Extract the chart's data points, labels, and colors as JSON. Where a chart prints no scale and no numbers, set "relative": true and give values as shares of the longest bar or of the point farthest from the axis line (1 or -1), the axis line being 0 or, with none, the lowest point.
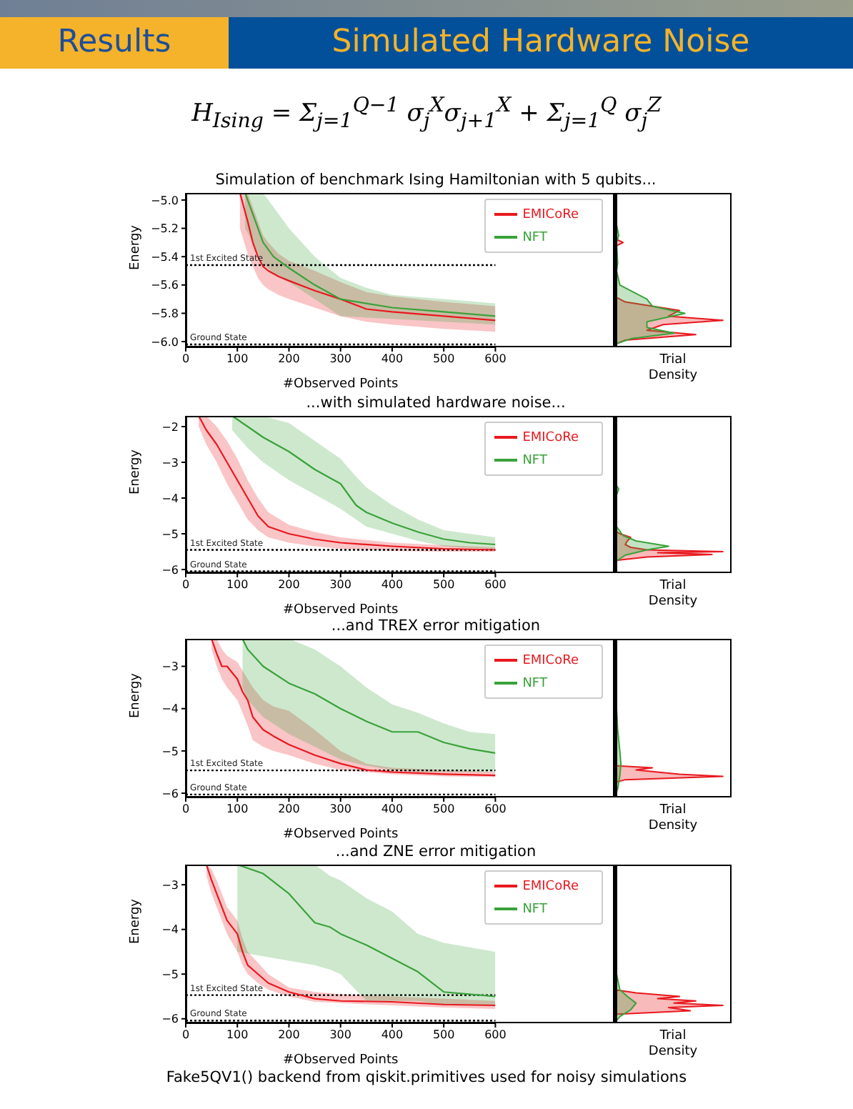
{
  "chart_data": [
    {
      "type": "line",
      "title": "Simulation of benchmark Ising Hamiltonian with 5 qubits...",
      "annotations": [
        "Results",
        "Simulated Hardware Noise",
        "H$_{Ising}$ = Σ$_{j=1}$$^{Q−1}$ σ$_{j}$$^{X}$σ$_{j+1}$$^{X}$ + Σ$_{j=1}$$^{Q}$ σ$_{j}$$^{Z}$"
      ],
      "xlabel": "#Observed Points",
      "ylabel": "Energy",
      "xlim": [
        0,
        600
      ],
      "xticks": [
        0,
        100,
        200,
        300,
        400,
        500,
        600
      ],
      "ylim": [
        -6.04,
        -4.95
      ],
      "yticks": [
        {
          "value": -5,
          "label": "−5.0"
        },
        -5.2,
        -5.4,
        -5.6,
        -5.8,
        {
          "value": -6,
          "label": "−6.0"
        }
      ],
      "legend": "top right",
      "ref_lines": [
        {
          "axis": "y",
          "value": -5.46,
          "label": "1st Excited State",
          "color": "#000000",
          "line_style": "dotted"
        },
        {
          "axis": "y",
          "value": -6.02,
          "label": "Ground State",
          "color": "#000000",
          "line_style": "dotted"
        }
      ],
      "series": [
        {
          "name": "EMICoRe",
          "color": "#e8191f",
          "x": [
            105,
            120,
            130,
            140,
            150,
            160,
            180,
            200,
            250,
            300,
            350,
            400,
            500,
            600
          ],
          "values": [
            -4.95,
            -5.15,
            -5.3,
            -5.4,
            -5.47,
            -5.5,
            -5.54,
            -5.57,
            -5.64,
            -5.7,
            -5.77,
            -5.79,
            -5.82,
            -5.85
          ],
          "lower": [
            -5.2,
            -5.38,
            -5.47,
            -5.55,
            -5.6,
            -5.63,
            -5.67,
            -5.7,
            -5.76,
            -5.82,
            -5.86,
            -5.88,
            -5.91,
            -5.93
          ],
          "upper": [
            -4.95,
            -4.95,
            -5.05,
            -5.15,
            -5.25,
            -5.3,
            -5.38,
            -5.43,
            -5.5,
            -5.58,
            -5.65,
            -5.68,
            -5.72,
            -5.75
          ]
        },
        {
          "name": "NFT",
          "color": "#3aa23a",
          "x": [
            115,
            130,
            150,
            170,
            200,
            250,
            300,
            350,
            400,
            500,
            600
          ],
          "values": [
            -4.95,
            -5.1,
            -5.3,
            -5.4,
            -5.48,
            -5.6,
            -5.7,
            -5.73,
            -5.76,
            -5.79,
            -5.82
          ],
          "lower": [
            -5.2,
            -5.3,
            -5.45,
            -5.52,
            -5.58,
            -5.7,
            -5.82,
            -5.83,
            -5.84,
            -5.86,
            -5.88
          ],
          "upper": [
            -4.95,
            -4.95,
            -4.95,
            -5.05,
            -5.2,
            -5.4,
            -5.55,
            -5.62,
            -5.67,
            -5.7,
            -5.73
          ]
        }
      ]
    },
    {
      "type": "area",
      "orientation": "horizontal",
      "relative": true,
      "xlabel": "Trial Density",
      "ylim": [
        -6.04,
        -4.95
      ],
      "tick_labels": false,
      "series": [
        {
          "color": "#e8191f",
          "x": [
            -6.02,
            -5.99,
            -5.95,
            -5.92,
            -5.88,
            -5.85,
            -5.82,
            -5.78,
            -5.72,
            -5.68,
            -5.5,
            -5.33,
            -5.3,
            -5.27,
            -5.0
          ],
          "values": [
            0,
            0.1,
            0.75,
            0.3,
            0.45,
            1.0,
            0.5,
            0.6,
            0.1,
            0,
            0,
            0,
            0.08,
            0,
            0
          ]
        },
        {
          "color": "#3aa23a",
          "x": [
            -6.02,
            -5.98,
            -5.94,
            -5.9,
            -5.86,
            -5.8,
            -5.75,
            -5.7,
            -5.6,
            -5.5,
            -5.45,
            -5.3,
            -5.25,
            -5.1,
            -5.0,
            -4.95
          ],
          "values": [
            0,
            0.15,
            0.55,
            0.3,
            0.3,
            0.65,
            0.35,
            0.3,
            0.05,
            0.02,
            0.03,
            0.02,
            0.04,
            0,
            0.02,
            0.02
          ]
        }
      ]
    },
    {
      "type": "line",
      "title": "...with simulated hardware noise...",
      "xlabel": "#Observed Points",
      "ylabel": "Energy",
      "xlim": [
        0,
        600
      ],
      "xticks": [
        0,
        100,
        200,
        300,
        400,
        500,
        600
      ],
      "ylim": [
        -6.1,
        -1.7
      ],
      "yticks": [
        -2,
        -3,
        -4,
        -5,
        -6
      ],
      "legend": "top right",
      "ref_lines": [
        {
          "axis": "y",
          "value": -5.45,
          "label": "1st Excited State",
          "color": "#000000",
          "line_style": "dotted"
        },
        {
          "axis": "y",
          "value": -6.05,
          "label": "Ground State",
          "color": "#000000",
          "line_style": "dotted"
        }
      ],
      "series": [
        {
          "name": "EMICoRe",
          "color": "#e8191f",
          "x": [
            25,
            40,
            60,
            80,
            100,
            120,
            140,
            160,
            200,
            250,
            300,
            400,
            500,
            600
          ],
          "values": [
            -1.7,
            -2.1,
            -2.5,
            -3.0,
            -3.5,
            -4.0,
            -4.5,
            -4.8,
            -5.0,
            -5.15,
            -5.25,
            -5.35,
            -5.42,
            -5.45
          ],
          "lower": [
            -2.0,
            -2.5,
            -3.0,
            -3.6,
            -4.1,
            -4.6,
            -4.9,
            -5.1,
            -5.25,
            -5.35,
            -5.42,
            -5.48,
            -5.5,
            -5.5
          ],
          "upper": [
            -1.7,
            -1.7,
            -2.0,
            -2.4,
            -2.9,
            -3.5,
            -4.0,
            -4.4,
            -4.75,
            -4.95,
            -5.1,
            -5.25,
            -5.32,
            -5.38
          ]
        },
        {
          "name": "NFT",
          "color": "#3aa23a",
          "x": [
            90,
            120,
            150,
            200,
            250,
            300,
            330,
            350,
            400,
            450,
            500,
            550,
            600
          ],
          "values": [
            -1.7,
            -2.0,
            -2.3,
            -2.7,
            -3.2,
            -3.6,
            -4.2,
            -4.4,
            -4.7,
            -4.95,
            -5.15,
            -5.25,
            -5.3
          ],
          "lower": [
            -2.1,
            -2.6,
            -3.0,
            -3.5,
            -3.9,
            -4.3,
            -4.6,
            -4.8,
            -5.0,
            -5.2,
            -5.35,
            -5.4,
            -5.42
          ],
          "upper": [
            -1.7,
            -1.7,
            -1.7,
            -1.9,
            -2.4,
            -2.9,
            -3.4,
            -3.7,
            -4.2,
            -4.6,
            -4.9,
            -5.0,
            -5.1
          ]
        }
      ]
    },
    {
      "type": "area",
      "orientation": "horizontal",
      "relative": true,
      "xlabel": "Trial Density",
      "ylim": [
        -6.1,
        -1.7
      ],
      "tick_labels": false,
      "series": [
        {
          "color": "#e8191f",
          "x": [
            -5.75,
            -5.65,
            -5.58,
            -5.53,
            -5.5,
            -5.45,
            -5.38,
            -5.3,
            -5.2,
            -5.1,
            -5.0,
            -4.9
          ],
          "values": [
            0,
            0.3,
            0.9,
            0.4,
            1.0,
            0.3,
            0.15,
            0.1,
            0.12,
            0.15,
            0.05,
            0
          ]
        },
        {
          "color": "#3aa23a",
          "x": [
            -5.8,
            -5.6,
            -5.45,
            -5.35,
            -5.2,
            -5.05,
            -4.8,
            -4.0,
            -3.75,
            -3.6,
            -2.0,
            -1.7
          ],
          "values": [
            0,
            0.1,
            0.3,
            0.5,
            0.2,
            0.08,
            0.02,
            0.01,
            0.04,
            0.01,
            0,
            0
          ]
        }
      ]
    },
    {
      "type": "line",
      "title": "...and TREX error mitigation",
      "xlabel": "#Observed Points",
      "ylabel": "Energy",
      "xlim": [
        0,
        600
      ],
      "xticks": [
        0,
        100,
        200,
        300,
        400,
        500,
        600
      ],
      "ylim": [
        -6.1,
        -2.35
      ],
      "yticks": [
        -3,
        -4,
        -5,
        -6
      ],
      "legend": "top right",
      "ref_lines": [
        {
          "axis": "y",
          "value": -5.46,
          "label": "1st Excited State",
          "color": "#000000",
          "line_style": "dotted"
        },
        {
          "axis": "y",
          "value": -6.03,
          "label": "Ground State",
          "color": "#000000",
          "line_style": "dotted"
        }
      ],
      "series": [
        {
          "name": "EMICoRe",
          "color": "#e8191f",
          "x": [
            50,
            60,
            70,
            80,
            100,
            110,
            120,
            130,
            150,
            170,
            200,
            250,
            300,
            350,
            400,
            500,
            600
          ],
          "values": [
            -2.35,
            -2.7,
            -3.0,
            -3.0,
            -3.3,
            -3.6,
            -3.8,
            -4.2,
            -4.5,
            -4.65,
            -4.85,
            -5.1,
            -5.3,
            -5.45,
            -5.5,
            -5.55,
            -5.58
          ],
          "lower": [
            -2.6,
            -3.0,
            -3.3,
            -3.5,
            -3.8,
            -4.1,
            -4.4,
            -4.75,
            -4.9,
            -5.0,
            -5.1,
            -5.3,
            -5.45,
            -5.5,
            -5.55,
            -5.6,
            -5.62
          ],
          "upper": [
            -2.35,
            -2.35,
            -2.6,
            -2.75,
            -2.9,
            -3.1,
            -3.3,
            -3.5,
            -3.8,
            -3.95,
            -4.05,
            -4.5,
            -5.0,
            -5.3,
            -5.4,
            -5.45,
            -5.5
          ]
        },
        {
          "name": "NFT",
          "color": "#3aa23a",
          "x": [
            110,
            120,
            150,
            200,
            250,
            300,
            350,
            400,
            450,
            500,
            550,
            600
          ],
          "values": [
            -2.35,
            -2.6,
            -3.0,
            -3.4,
            -3.65,
            -4.0,
            -4.3,
            -4.55,
            -4.55,
            -4.8,
            -4.95,
            -5.05
          ],
          "lower": [
            -3.5,
            -3.8,
            -4.2,
            -4.6,
            -4.9,
            -5.2,
            -5.35,
            -5.45,
            -5.5,
            -5.5,
            -5.5,
            -5.5
          ],
          "upper": [
            -2.35,
            -2.35,
            -2.35,
            -2.35,
            -2.6,
            -3.0,
            -3.5,
            -3.9,
            -4.1,
            -4.35,
            -4.55,
            -4.6
          ]
        }
      ]
    },
    {
      "type": "area",
      "orientation": "horizontal",
      "relative": true,
      "xlabel": "Trial Density",
      "ylim": [
        -6.1,
        -2.35
      ],
      "tick_labels": false,
      "series": [
        {
          "color": "#e8191f",
          "x": [
            -5.75,
            -5.68,
            -5.6,
            -5.55,
            -5.5,
            -5.45,
            -5.4,
            -5.35
          ],
          "values": [
            0,
            0.1,
            1.0,
            0.6,
            0.4,
            0.2,
            0.35,
            0
          ]
        },
        {
          "color": "#3aa23a",
          "x": [
            -6.1,
            -5.9,
            -5.6,
            -5.3,
            -5.0,
            -4.5,
            -4.0,
            -3.5,
            -2.5
          ],
          "values": [
            0,
            0.03,
            0.05,
            0.06,
            0.05,
            0.03,
            0.02,
            0.01,
            0.01
          ]
        }
      ]
    },
    {
      "type": "line",
      "title": "...and ZNE error mitigation",
      "annotations": [
        "Fake5QV1() backend from qiskit.primitives used for noisy simulations"
      ],
      "xlabel": "#Observed Points",
      "ylabel": "Energy",
      "xlim": [
        0,
        600
      ],
      "xticks": [
        0,
        100,
        200,
        300,
        400,
        500,
        600
      ],
      "ylim": [
        -6.1,
        -2.55
      ],
      "yticks": [
        -3,
        -4,
        -5,
        -6
      ],
      "legend": "top right",
      "ref_lines": [
        {
          "axis": "y",
          "value": -5.47,
          "label": "1st Excited State",
          "color": "#000000",
          "line_style": "dotted"
        },
        {
          "axis": "y",
          "value": -6.04,
          "label": "Ground State",
          "color": "#000000",
          "line_style": "dotted"
        }
      ],
      "series": [
        {
          "name": "EMICoRe",
          "color": "#e8191f",
          "x": [
            40,
            50,
            60,
            70,
            80,
            100,
            110,
            120,
            140,
            160,
            200,
            250,
            300,
            400,
            500,
            600
          ],
          "values": [
            -2.55,
            -2.9,
            -3.2,
            -3.5,
            -3.8,
            -4.1,
            -4.5,
            -4.8,
            -5.0,
            -5.2,
            -5.4,
            -5.55,
            -5.6,
            -5.62,
            -5.68,
            -5.7
          ],
          "lower": [
            -2.8,
            -3.2,
            -3.5,
            -3.8,
            -4.1,
            -4.5,
            -4.8,
            -5.0,
            -5.2,
            -5.35,
            -5.5,
            -5.62,
            -5.65,
            -5.7,
            -5.75,
            -5.78
          ],
          "upper": [
            -2.55,
            -2.65,
            -2.9,
            -3.2,
            -3.5,
            -3.8,
            -4.2,
            -4.5,
            -4.75,
            -5.0,
            -5.3,
            -5.4,
            -5.45,
            -5.5,
            -5.55,
            -5.6
          ]
        },
        {
          "name": "NFT",
          "color": "#3aa23a",
          "x": [
            100,
            150,
            200,
            250,
            280,
            300,
            350,
            400,
            450,
            500,
            550,
            600
          ],
          "values": [
            -2.55,
            -2.75,
            -3.2,
            -3.85,
            -3.95,
            -4.1,
            -4.35,
            -4.65,
            -4.95,
            -5.4,
            -5.45,
            -5.5
          ],
          "lower": [
            -4.5,
            -4.6,
            -4.7,
            -4.8,
            -4.9,
            -5.0,
            -5.6,
            -5.6,
            -5.6,
            -5.7,
            -5.7,
            -5.7
          ],
          "upper": [
            -2.55,
            -2.55,
            -2.55,
            -2.55,
            -2.8,
            -2.9,
            -3.3,
            -3.6,
            -4.1,
            -4.3,
            -4.4,
            -4.5
          ]
        }
      ]
    },
    {
      "type": "area",
      "orientation": "horizontal",
      "relative": true,
      "xlabel": "Trial Density",
      "ylim": [
        -6.1,
        -2.55
      ],
      "tick_labels": false,
      "series": [
        {
          "color": "#e8191f",
          "x": [
            -5.9,
            -5.82,
            -5.75,
            -5.7,
            -5.65,
            -5.6,
            -5.55,
            -5.5,
            -5.42,
            -5.35
          ],
          "values": [
            0,
            0.7,
            0.5,
            1.0,
            0.55,
            0.75,
            0.4,
            0.6,
            0.2,
            0
          ]
        },
        {
          "color": "#3aa23a",
          "x": [
            -6.1,
            -5.95,
            -5.8,
            -5.65,
            -5.5,
            -5.35,
            -5.0,
            -4.5,
            -4.0,
            -3.5,
            -3.0
          ],
          "values": [
            0,
            0.05,
            0.15,
            0.2,
            0.12,
            0.05,
            0.02,
            0.02,
            0.01,
            0.015,
            0.01
          ]
        }
      ]
    }
  ]
}
